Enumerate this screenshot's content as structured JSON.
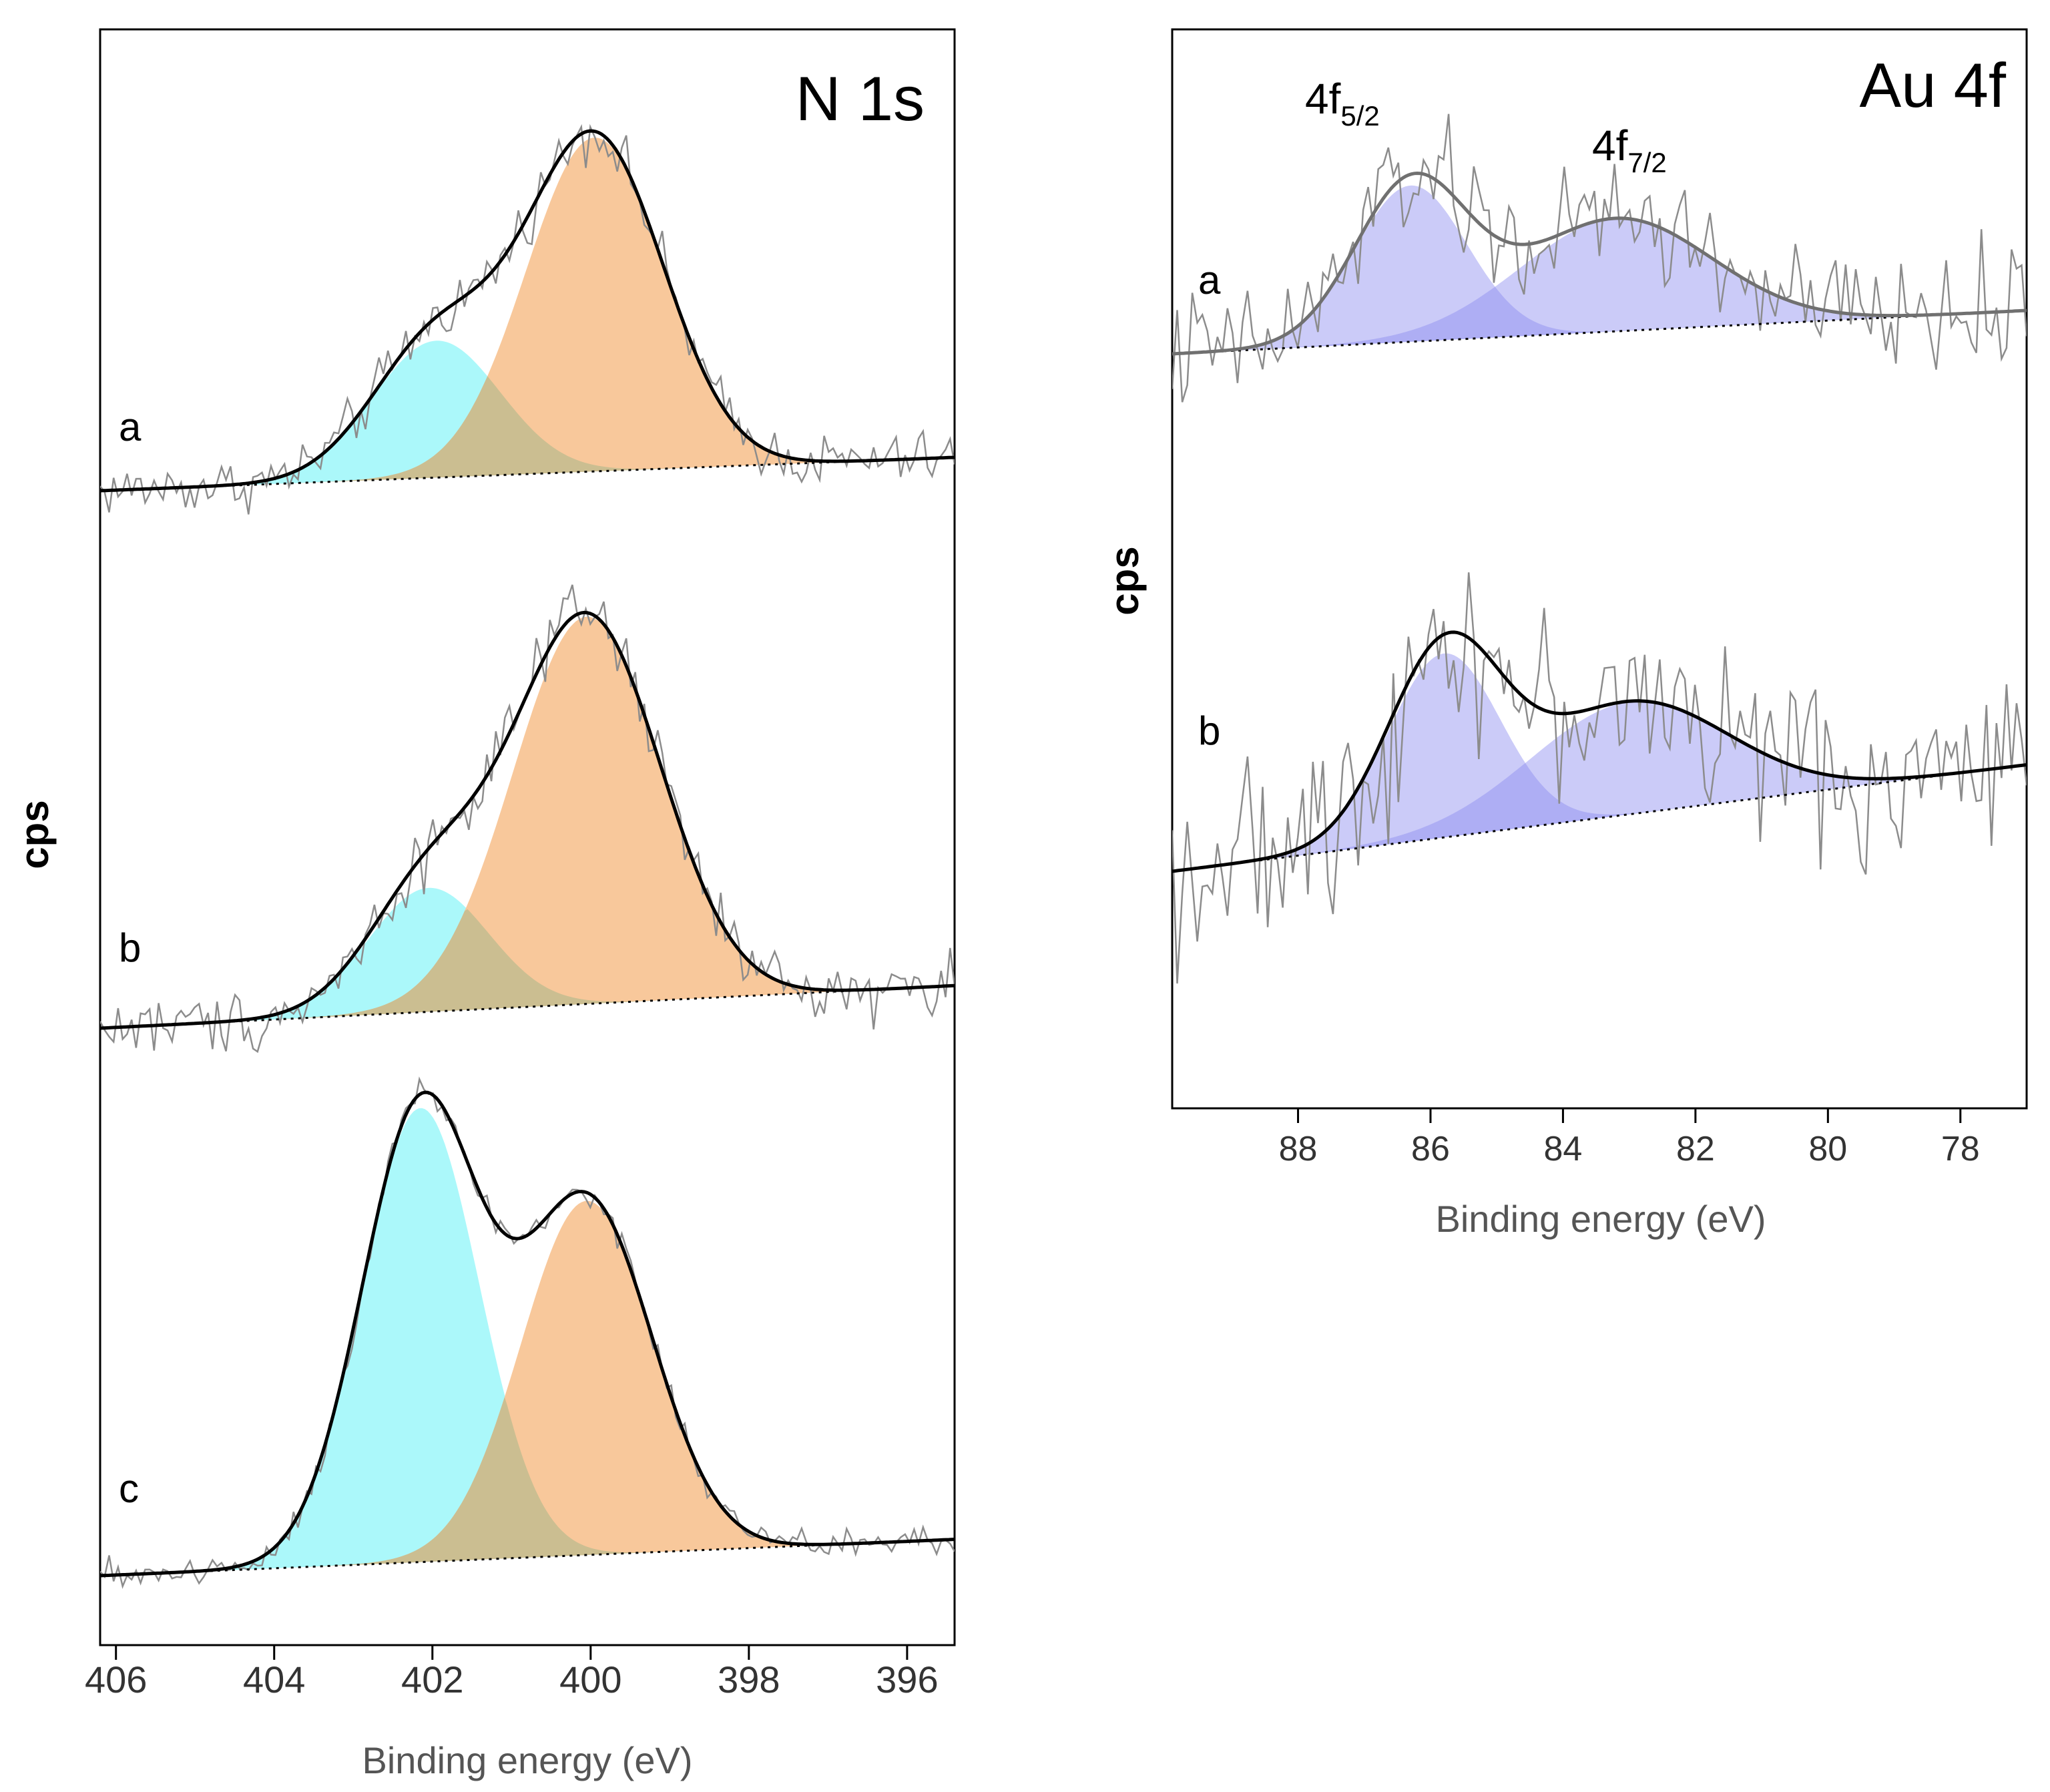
{
  "chart_data": [
    {
      "type": "line",
      "panel_title": "N 1s",
      "xlabel": "Binding energy (eV)",
      "ylabel": "cps",
      "x_reversed": true,
      "xlim": [
        406.2,
        395.4
      ],
      "xticks": [
        406,
        404,
        402,
        400,
        398,
        396
      ],
      "xtick_labels": [
        "406",
        "404",
        "402",
        "400",
        "398",
        "396"
      ],
      "grid": false,
      "colors": {
        "component_high": "#a6f8fa",
        "component_low": "#f8c596",
        "overlap": "#c7bc90",
        "envelope": "#000000",
        "raw": "#8c8c8c",
        "background": "#000000"
      },
      "spectra": [
        {
          "label": "a",
          "baseline": [
            [
              406.2,
              0.0
            ],
            [
              395.4,
              0.1
            ]
          ],
          "components": [
            {
              "center": 401.95,
              "height": 0.41,
              "fwhm": 1.9,
              "color": "component_high"
            },
            {
              "center": 399.95,
              "height": 1.0,
              "fwhm": 2.05,
              "color": "component_low"
            }
          ],
          "raw_noise": 0.05
        },
        {
          "label": "b",
          "baseline": [
            [
              406.2,
              0.0
            ],
            [
              395.4,
              0.11
            ]
          ],
          "components": [
            {
              "center": 402.05,
              "height": 0.32,
              "fwhm": 1.8,
              "color": "component_high"
            },
            {
              "center": 400.05,
              "height": 1.0,
              "fwhm": 2.2,
              "color": "component_low"
            }
          ],
          "raw_noise": 0.05
        },
        {
          "label": "c",
          "baseline": [
            [
              406.2,
              0.0
            ],
            [
              395.4,
              0.08
            ]
          ],
          "components": [
            {
              "center": 402.15,
              "height": 1.0,
              "fwhm": 1.75,
              "color": "component_high"
            },
            {
              "center": 400.05,
              "height": 0.78,
              "fwhm": 1.95,
              "color": "component_low"
            }
          ],
          "raw_noise": 0.022
        }
      ]
    },
    {
      "type": "line",
      "panel_title": "Au 4f",
      "xlabel": "Binding energy (eV)",
      "ylabel": "cps",
      "x_reversed": true,
      "xlim": [
        89.9,
        77.0
      ],
      "xticks": [
        88,
        86,
        84,
        82,
        80,
        78
      ],
      "xtick_labels": [
        "88",
        "86",
        "84",
        "82",
        "80",
        "78"
      ],
      "grid": false,
      "peak_labels": [
        {
          "main": "4f",
          "sub": "5/2",
          "x": 86.2
        },
        {
          "main": "4f",
          "sub": "7/2",
          "x": 82.6
        }
      ],
      "colors": {
        "component": "#8c8cf0",
        "envelope_a": "#707070",
        "envelope_b": "#000000",
        "raw": "#8c8c8c",
        "background": "#000000"
      },
      "spectra": [
        {
          "label": "a",
          "baseline": [
            [
              89.9,
              0.0
            ],
            [
              77.0,
              0.25
            ]
          ],
          "components": [
            {
              "center": 86.3,
              "height": 0.9,
              "fwhm": 2.0
            },
            {
              "center": 83.2,
              "height": 0.65,
              "fwhm": 3.4
            }
          ],
          "raw_noise": 0.22
        },
        {
          "label": "b",
          "baseline": [
            [
              89.9,
              0.0
            ],
            [
              77.0,
              0.55
            ]
          ],
          "components": [
            {
              "center": 85.8,
              "height": 0.95,
              "fwhm": 2.0
            },
            {
              "center": 83.0,
              "height": 0.58,
              "fwhm": 3.5
            }
          ],
          "raw_noise": 0.28
        }
      ]
    }
  ]
}
